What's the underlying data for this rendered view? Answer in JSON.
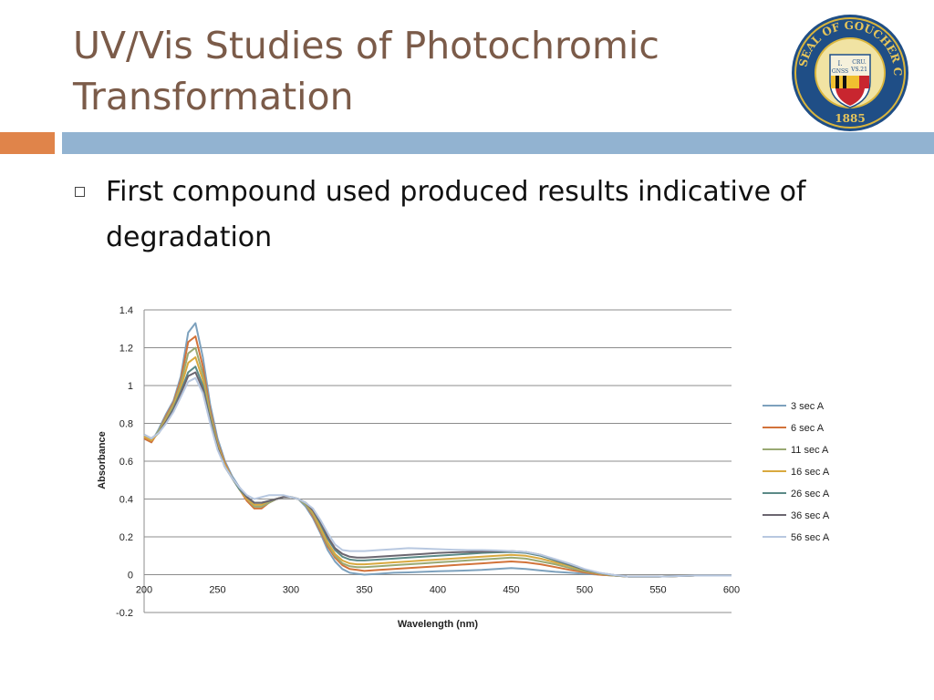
{
  "slide": {
    "title": "UV/Vis Studies of Photochromic Transformation",
    "bullet": "First compound used produced results indicative of degradation",
    "logo": {
      "outer_text": "SEAL OF GOUCHER COLLEGE",
      "year": "1885",
      "inner_text_1": "I.",
      "inner_text_2": "CRU.",
      "inner_text_3": "GNSS",
      "inner_text_4": "VS.21"
    }
  },
  "colors": {
    "title": "#7b5b49",
    "band_orange": "#e0844a",
    "band_blue": "#92b3d1"
  },
  "chart_data": {
    "type": "line",
    "title": "",
    "xlabel": "Wavelength (nm)",
    "ylabel": "Absorbance",
    "xlim": [
      200,
      600
    ],
    "ylim": [
      -0.2,
      1.4
    ],
    "xticks": [
      200,
      250,
      300,
      350,
      400,
      450,
      500,
      550,
      600
    ],
    "xtick_labels": [
      "200",
      "250",
      "300",
      "350",
      "400",
      "450",
      "500",
      "550",
      "600"
    ],
    "yticks": [
      -0.2,
      0,
      0.2,
      0.4,
      0.6,
      0.8,
      1,
      1.2,
      1.4
    ],
    "ytick_labels": [
      "-0.2",
      "0",
      "0.2",
      "0.4",
      "0.6",
      "0.8",
      "1",
      "1.2",
      "1.4"
    ],
    "grid": true,
    "legend_position": "right",
    "x": [
      200,
      205,
      210,
      215,
      220,
      225,
      230,
      235,
      240,
      245,
      250,
      255,
      260,
      265,
      270,
      275,
      280,
      285,
      290,
      295,
      300,
      305,
      310,
      315,
      320,
      325,
      330,
      335,
      340,
      345,
      350,
      360,
      370,
      380,
      390,
      400,
      410,
      420,
      430,
      440,
      450,
      460,
      470,
      480,
      490,
      500,
      510,
      520,
      530,
      540,
      550,
      575,
      600
    ],
    "series": [
      {
        "name": "3 sec A",
        "color": "#7da1bd",
        "values": [
          0.72,
          0.7,
          0.77,
          0.85,
          0.92,
          1.05,
          1.28,
          1.33,
          1.15,
          0.9,
          0.72,
          0.6,
          0.52,
          0.46,
          0.4,
          0.36,
          0.36,
          0.38,
          0.4,
          0.41,
          0.41,
          0.4,
          0.36,
          0.3,
          0.22,
          0.13,
          0.07,
          0.03,
          0.01,
          0.005,
          0.0,
          0.005,
          0.01,
          0.012,
          0.015,
          0.018,
          0.02,
          0.022,
          0.025,
          0.03,
          0.035,
          0.03,
          0.022,
          0.015,
          0.01,
          0.005,
          0.0,
          -0.005,
          -0.01,
          -0.01,
          -0.01,
          -0.005,
          -0.005
        ]
      },
      {
        "name": "6 sec A",
        "color": "#d2733a",
        "values": [
          0.72,
          0.7,
          0.76,
          0.84,
          0.91,
          1.03,
          1.23,
          1.26,
          1.1,
          0.87,
          0.7,
          0.59,
          0.51,
          0.45,
          0.39,
          0.35,
          0.35,
          0.38,
          0.4,
          0.41,
          0.41,
          0.4,
          0.37,
          0.31,
          0.23,
          0.15,
          0.09,
          0.05,
          0.03,
          0.025,
          0.02,
          0.025,
          0.03,
          0.035,
          0.04,
          0.045,
          0.05,
          0.055,
          0.06,
          0.065,
          0.07,
          0.065,
          0.055,
          0.04,
          0.025,
          0.012,
          0.0,
          -0.005,
          -0.01,
          -0.01,
          -0.01,
          -0.005,
          -0.005
        ]
      },
      {
        "name": "11 sec A",
        "color": "#9aa973",
        "values": [
          0.73,
          0.71,
          0.76,
          0.83,
          0.9,
          1.01,
          1.17,
          1.2,
          1.06,
          0.85,
          0.69,
          0.58,
          0.51,
          0.45,
          0.4,
          0.36,
          0.36,
          0.38,
          0.4,
          0.41,
          0.41,
          0.4,
          0.37,
          0.32,
          0.24,
          0.16,
          0.1,
          0.06,
          0.045,
          0.04,
          0.04,
          0.045,
          0.05,
          0.055,
          0.06,
          0.065,
          0.07,
          0.075,
          0.08,
          0.085,
          0.09,
          0.085,
          0.07,
          0.055,
          0.035,
          0.018,
          0.005,
          -0.005,
          -0.01,
          -0.01,
          -0.01,
          -0.005,
          -0.005
        ]
      },
      {
        "name": "16 sec A",
        "color": "#d9a93f",
        "values": [
          0.73,
          0.71,
          0.75,
          0.82,
          0.89,
          0.99,
          1.12,
          1.15,
          1.03,
          0.83,
          0.68,
          0.58,
          0.51,
          0.45,
          0.4,
          0.37,
          0.37,
          0.39,
          0.4,
          0.41,
          0.41,
          0.4,
          0.38,
          0.33,
          0.25,
          0.17,
          0.11,
          0.075,
          0.06,
          0.055,
          0.055,
          0.06,
          0.065,
          0.07,
          0.075,
          0.08,
          0.085,
          0.09,
          0.095,
          0.1,
          0.105,
          0.1,
          0.085,
          0.065,
          0.045,
          0.022,
          0.006,
          -0.004,
          -0.01,
          -0.01,
          -0.01,
          -0.005,
          -0.005
        ]
      },
      {
        "name": "26 sec A",
        "color": "#5b8a87",
        "values": [
          0.74,
          0.72,
          0.75,
          0.81,
          0.88,
          0.97,
          1.07,
          1.1,
          1.0,
          0.82,
          0.67,
          0.57,
          0.51,
          0.45,
          0.41,
          0.38,
          0.38,
          0.39,
          0.4,
          0.41,
          0.41,
          0.4,
          0.38,
          0.34,
          0.27,
          0.19,
          0.13,
          0.095,
          0.08,
          0.075,
          0.075,
          0.08,
          0.085,
          0.09,
          0.095,
          0.1,
          0.105,
          0.11,
          0.115,
          0.118,
          0.12,
          0.115,
          0.1,
          0.075,
          0.05,
          0.025,
          0.008,
          -0.003,
          -0.01,
          -0.01,
          -0.01,
          -0.005,
          -0.005
        ]
      },
      {
        "name": "36 sec A",
        "color": "#6b6670",
        "values": [
          0.74,
          0.72,
          0.75,
          0.81,
          0.87,
          0.96,
          1.05,
          1.07,
          0.98,
          0.81,
          0.67,
          0.57,
          0.51,
          0.46,
          0.41,
          0.38,
          0.38,
          0.39,
          0.4,
          0.41,
          0.41,
          0.4,
          0.38,
          0.34,
          0.28,
          0.2,
          0.14,
          0.11,
          0.095,
          0.09,
          0.09,
          0.095,
          0.1,
          0.105,
          0.11,
          0.115,
          0.118,
          0.12,
          0.122,
          0.124,
          0.125,
          0.12,
          0.105,
          0.08,
          0.055,
          0.028,
          0.009,
          -0.002,
          -0.01,
          -0.01,
          -0.01,
          -0.005,
          -0.005
        ]
      },
      {
        "name": "56 sec A",
        "color": "#b8c8e0",
        "values": [
          0.74,
          0.72,
          0.75,
          0.8,
          0.86,
          0.94,
          1.02,
          1.04,
          0.96,
          0.8,
          0.66,
          0.57,
          0.51,
          0.46,
          0.42,
          0.4,
          0.41,
          0.42,
          0.42,
          0.42,
          0.41,
          0.4,
          0.38,
          0.35,
          0.29,
          0.22,
          0.16,
          0.13,
          0.125,
          0.125,
          0.125,
          0.13,
          0.135,
          0.14,
          0.138,
          0.135,
          0.132,
          0.13,
          0.13,
          0.128,
          0.125,
          0.12,
          0.105,
          0.082,
          0.058,
          0.03,
          0.01,
          -0.002,
          -0.01,
          -0.01,
          -0.01,
          -0.005,
          -0.005
        ]
      }
    ]
  }
}
